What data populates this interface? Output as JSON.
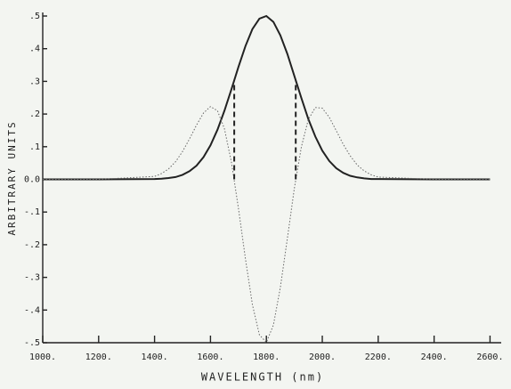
{
  "chart_data": {
    "type": "line",
    "x_label": "WAVELENGTH (nm)",
    "y_label": "ARBITRARY UNITS",
    "x": [
      1000,
      1200,
      1400,
      1425,
      1450,
      1475,
      1500,
      1525,
      1550,
      1575,
      1600,
      1625,
      1650,
      1675,
      1700,
      1725,
      1750,
      1775,
      1800,
      1825,
      1850,
      1875,
      1900,
      1925,
      1950,
      1975,
      2000,
      2025,
      2050,
      2075,
      2100,
      2125,
      2150,
      2175,
      2200,
      2400,
      2600
    ],
    "series": [
      {
        "color": "#222222",
        "style": "solid",
        "values": [
          0,
          0,
          0.001,
          0.002,
          0.004,
          0.007,
          0.014,
          0.025,
          0.042,
          0.068,
          0.104,
          0.152,
          0.21,
          0.276,
          0.344,
          0.408,
          0.46,
          0.492,
          0.5,
          0.482,
          0.441,
          0.384,
          0.317,
          0.249,
          0.185,
          0.131,
          0.088,
          0.056,
          0.034,
          0.02,
          0.011,
          0.006,
          0.003,
          0.001,
          0.001,
          0,
          0
        ]
      },
      {
        "color": "#666666",
        "style": "dotted",
        "values": [
          0,
          0,
          0.009,
          0.018,
          0.032,
          0.054,
          0.085,
          0.124,
          0.166,
          0.203,
          0.223,
          0.21,
          0.155,
          0.052,
          -0.088,
          -0.243,
          -0.383,
          -0.476,
          -0.499,
          -0.446,
          -0.331,
          -0.181,
          -0.028,
          0.099,
          0.183,
          0.22,
          0.218,
          0.19,
          0.149,
          0.107,
          0.072,
          0.044,
          0.026,
          0.014,
          0.007,
          0,
          0
        ]
      }
    ],
    "droplines": {
      "x": [
        1685,
        1905
      ],
      "values": [
        0.3,
        0.3
      ]
    },
    "xlim": [
      1000,
      2640
    ],
    "ylim": [
      -0.5,
      0.5
    ],
    "xticks": [
      {
        "value": 1000,
        "label": "1000."
      },
      {
        "value": 1200,
        "label": "1200."
      },
      {
        "value": 1400,
        "label": "1400."
      },
      {
        "value": 1600,
        "label": "1600."
      },
      {
        "value": 1800,
        "label": "1800."
      },
      {
        "value": 2000,
        "label": "2000."
      },
      {
        "value": 2200,
        "label": "2200."
      },
      {
        "value": 2400,
        "label": "2400."
      },
      {
        "value": 2600,
        "label": "2600."
      }
    ],
    "yticks": [
      {
        "value": 0.5,
        "label": ".5"
      },
      {
        "value": 0.4,
        "label": ".4"
      },
      {
        "value": 0.3,
        "label": ".3"
      },
      {
        "value": 0.2,
        "label": ".2"
      },
      {
        "value": 0.1,
        "label": ".1"
      },
      {
        "value": 0,
        "label": "0.0"
      },
      {
        "value": -0.1,
        "label": "-.1"
      },
      {
        "value": -0.2,
        "label": "-.2"
      },
      {
        "value": -0.3,
        "label": "-.3"
      },
      {
        "value": -0.4,
        "label": "-.4"
      },
      {
        "value": -0.5,
        "label": "-.5"
      }
    ]
  }
}
